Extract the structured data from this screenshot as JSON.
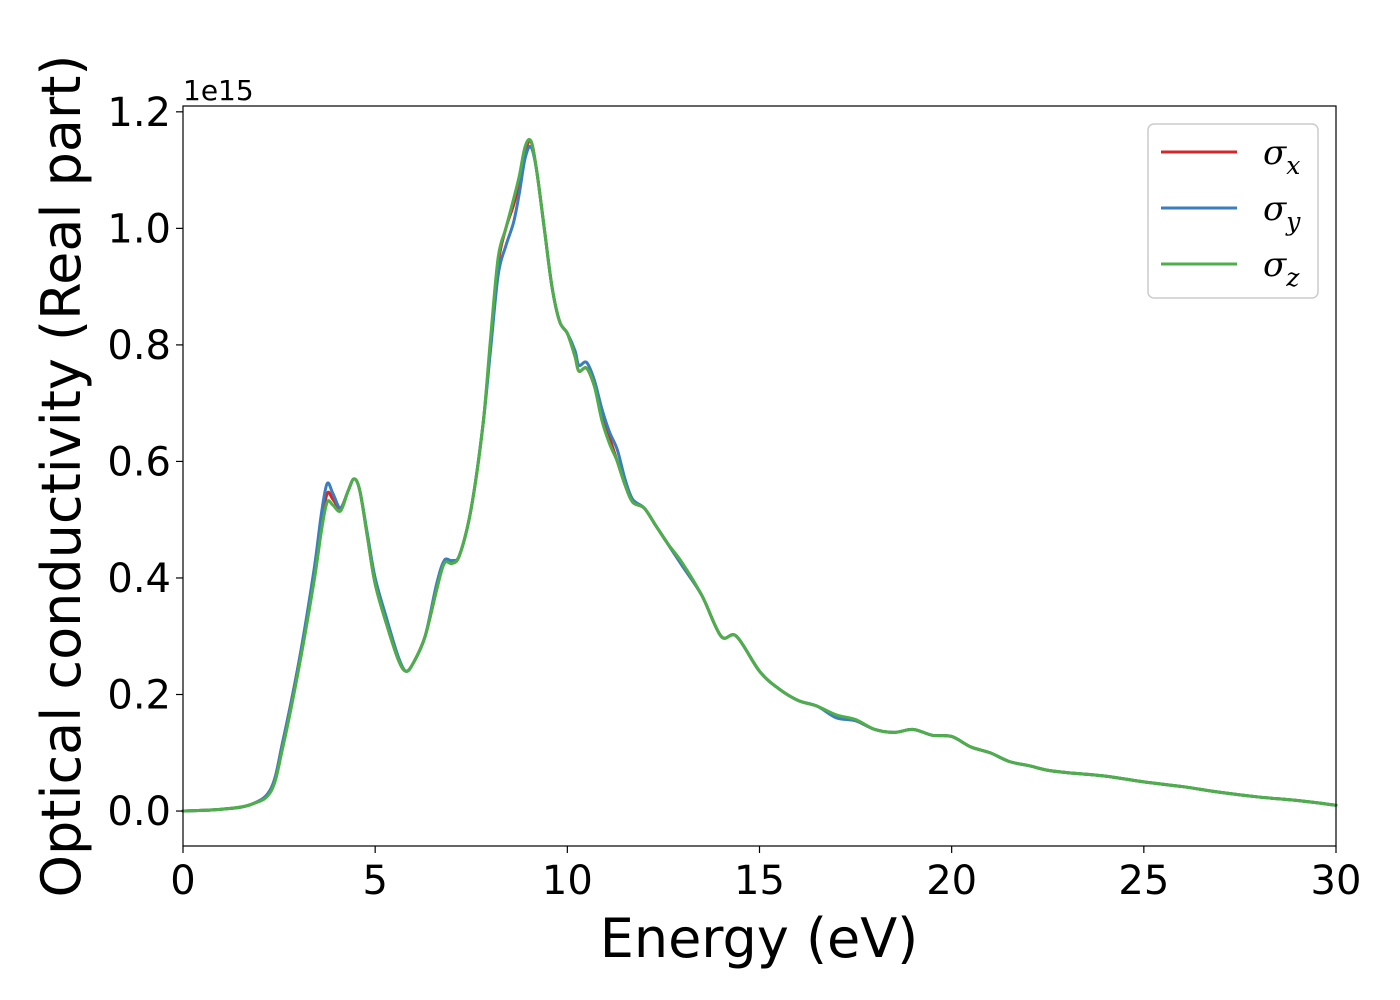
{
  "chart_data": {
    "type": "line",
    "xlabel": "Energy (eV)",
    "ylabel": "Optical conductivity (Real part)",
    "y_offset_label": "1e15",
    "xlim": [
      0,
      30
    ],
    "ylim": [
      -0.06,
      1.21
    ],
    "x_ticks": [
      0,
      5,
      10,
      15,
      20,
      25,
      30
    ],
    "x_tick_labels": [
      "0",
      "5",
      "10",
      "15",
      "20",
      "25",
      "30"
    ],
    "y_ticks": [
      0.0,
      0.2,
      0.4,
      0.6,
      0.8,
      1.0,
      1.2
    ],
    "y_tick_labels": [
      "0.0",
      "0.2",
      "0.4",
      "0.6",
      "0.8",
      "1.0",
      "1.2"
    ],
    "grid": false,
    "legend_position": "top-right",
    "series": [
      {
        "name": "σx",
        "label_main": "σ",
        "label_sub": "x",
        "color": "#d62728",
        "x": [
          0,
          1,
          1.8,
          2.3,
          2.6,
          3.0,
          3.4,
          3.6,
          3.75,
          3.9,
          4.1,
          4.3,
          4.45,
          4.6,
          4.8,
          5.0,
          5.3,
          5.6,
          5.8,
          6.0,
          6.3,
          6.6,
          6.8,
          7.0,
          7.2,
          7.5,
          7.8,
          8.0,
          8.2,
          8.4,
          8.6,
          8.75,
          8.9,
          9.05,
          9.2,
          9.4,
          9.6,
          9.8,
          10.0,
          10.2,
          10.3,
          10.5,
          10.7,
          10.9,
          11.1,
          11.3,
          11.5,
          11.7,
          12.0,
          12.3,
          12.6,
          13.0,
          13.5,
          14.0,
          14.4,
          15.0,
          15.5,
          16.0,
          16.5,
          17.0,
          17.5,
          18.0,
          18.5,
          19.0,
          19.5,
          20.0,
          20.5,
          21.0,
          21.5,
          22.0,
          22.5,
          23.0,
          24.0,
          25.0,
          26.0,
          27.0,
          28.0,
          29.0,
          30.0
        ],
        "y": [
          0.0,
          0.003,
          0.012,
          0.04,
          0.12,
          0.25,
          0.4,
          0.49,
          0.545,
          0.535,
          0.52,
          0.55,
          0.57,
          0.55,
          0.47,
          0.39,
          0.32,
          0.26,
          0.24,
          0.255,
          0.3,
          0.38,
          0.43,
          0.425,
          0.44,
          0.52,
          0.66,
          0.8,
          0.94,
          1.0,
          1.04,
          1.08,
          1.13,
          1.15,
          1.1,
          1.0,
          0.9,
          0.84,
          0.82,
          0.78,
          0.755,
          0.76,
          0.73,
          0.68,
          0.64,
          0.6,
          0.56,
          0.53,
          0.52,
          0.49,
          0.46,
          0.42,
          0.37,
          0.3,
          0.3,
          0.24,
          0.21,
          0.19,
          0.18,
          0.162,
          0.155,
          0.14,
          0.135,
          0.14,
          0.13,
          0.128,
          0.11,
          0.1,
          0.085,
          0.078,
          0.07,
          0.066,
          0.06,
          0.05,
          0.042,
          0.032,
          0.024,
          0.018,
          0.01
        ]
      },
      {
        "name": "σy",
        "label_main": "σ",
        "label_sub": "y",
        "color": "#3a7ebf",
        "x": [
          0,
          1,
          1.8,
          2.3,
          2.6,
          3.0,
          3.4,
          3.6,
          3.75,
          3.9,
          4.1,
          4.3,
          4.45,
          4.6,
          4.8,
          5.0,
          5.3,
          5.6,
          5.8,
          6.0,
          6.3,
          6.6,
          6.8,
          7.0,
          7.2,
          7.5,
          7.8,
          8.0,
          8.2,
          8.4,
          8.6,
          8.75,
          8.9,
          9.05,
          9.2,
          9.4,
          9.6,
          9.8,
          10.0,
          10.2,
          10.3,
          10.5,
          10.7,
          10.9,
          11.1,
          11.3,
          11.5,
          11.7,
          12.0,
          12.3,
          12.6,
          13.0,
          13.5,
          14.0,
          14.4,
          15.0,
          15.5,
          16.0,
          16.5,
          17.0,
          17.5,
          18.0,
          18.5,
          19.0,
          19.5,
          20.0,
          20.5,
          21.0,
          21.5,
          22.0,
          22.5,
          23.0,
          24.0,
          25.0,
          26.0,
          27.0,
          28.0,
          29.0,
          30.0
        ],
        "y": [
          0.0,
          0.003,
          0.012,
          0.04,
          0.12,
          0.25,
          0.41,
          0.51,
          0.562,
          0.545,
          0.52,
          0.55,
          0.57,
          0.55,
          0.475,
          0.4,
          0.33,
          0.265,
          0.24,
          0.255,
          0.3,
          0.39,
          0.43,
          0.43,
          0.44,
          0.52,
          0.66,
          0.79,
          0.92,
          0.97,
          1.01,
          1.06,
          1.12,
          1.14,
          1.1,
          1.0,
          0.9,
          0.84,
          0.82,
          0.79,
          0.765,
          0.77,
          0.74,
          0.69,
          0.65,
          0.62,
          0.57,
          0.535,
          0.52,
          0.49,
          0.46,
          0.42,
          0.37,
          0.3,
          0.3,
          0.24,
          0.21,
          0.19,
          0.18,
          0.16,
          0.155,
          0.14,
          0.135,
          0.14,
          0.13,
          0.128,
          0.11,
          0.1,
          0.085,
          0.078,
          0.07,
          0.066,
          0.06,
          0.05,
          0.042,
          0.032,
          0.024,
          0.018,
          0.01
        ]
      },
      {
        "name": "σz",
        "label_main": "σ",
        "label_sub": "z",
        "color": "#4daf4a",
        "x": [
          0,
          1,
          1.8,
          2.3,
          2.6,
          3.0,
          3.4,
          3.6,
          3.75,
          3.9,
          4.1,
          4.3,
          4.45,
          4.6,
          4.8,
          5.0,
          5.3,
          5.6,
          5.8,
          6.0,
          6.3,
          6.6,
          6.8,
          7.0,
          7.2,
          7.5,
          7.8,
          8.0,
          8.2,
          8.4,
          8.6,
          8.75,
          8.9,
          9.05,
          9.2,
          9.4,
          9.6,
          9.8,
          10.0,
          10.2,
          10.3,
          10.5,
          10.7,
          10.9,
          11.1,
          11.3,
          11.5,
          11.7,
          12.0,
          12.3,
          12.6,
          13.0,
          13.5,
          14.0,
          14.4,
          15.0,
          15.5,
          16.0,
          16.5,
          17.0,
          17.5,
          18.0,
          18.5,
          19.0,
          19.5,
          20.0,
          20.5,
          21.0,
          21.5,
          22.0,
          22.5,
          23.0,
          24.0,
          25.0,
          26.0,
          27.0,
          28.0,
          29.0,
          30.0
        ],
        "y": [
          0.0,
          0.003,
          0.012,
          0.035,
          0.11,
          0.24,
          0.39,
          0.48,
          0.53,
          0.525,
          0.515,
          0.55,
          0.57,
          0.55,
          0.47,
          0.39,
          0.32,
          0.26,
          0.24,
          0.255,
          0.3,
          0.38,
          0.425,
          0.425,
          0.44,
          0.52,
          0.66,
          0.81,
          0.95,
          1.0,
          1.05,
          1.09,
          1.14,
          1.15,
          1.1,
          1.0,
          0.9,
          0.84,
          0.82,
          0.78,
          0.755,
          0.76,
          0.73,
          0.67,
          0.63,
          0.6,
          0.56,
          0.53,
          0.52,
          0.49,
          0.46,
          0.425,
          0.37,
          0.3,
          0.3,
          0.24,
          0.21,
          0.19,
          0.18,
          0.165,
          0.157,
          0.14,
          0.135,
          0.14,
          0.13,
          0.128,
          0.11,
          0.1,
          0.085,
          0.078,
          0.07,
          0.066,
          0.06,
          0.05,
          0.042,
          0.032,
          0.024,
          0.018,
          0.01
        ]
      }
    ]
  }
}
